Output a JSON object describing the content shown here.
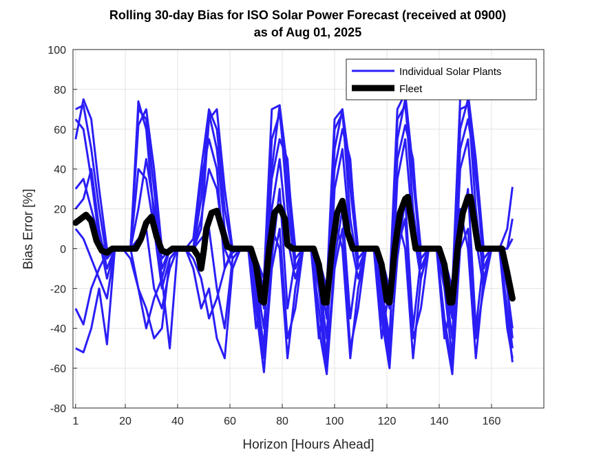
{
  "chart_data": {
    "type": "line",
    "title": [
      "Rolling 30-day Bias for ISO Solar Power Forecast (received at 0900)",
      "as of Aug 01, 2025"
    ],
    "xlabel": "Horizon [Hours Ahead]",
    "ylabel": "Bias Error [%]",
    "xlim": [
      0,
      180
    ],
    "ylim": [
      -80,
      100
    ],
    "xticks": [
      1,
      20,
      40,
      60,
      80,
      100,
      120,
      140,
      160
    ],
    "yticks": [
      -80,
      -60,
      -40,
      -20,
      0,
      20,
      40,
      60,
      80,
      100
    ],
    "grid": true,
    "legend": {
      "placement": "top-right",
      "entries": [
        "Individual Solar Plants",
        "Fleet"
      ]
    },
    "colors": {
      "plants": "#2a1ef5",
      "fleet": "#000000"
    },
    "plant_x": [
      1,
      4,
      7,
      10,
      13,
      16,
      19,
      22,
      25,
      28,
      31,
      34,
      37,
      40,
      43,
      46,
      49,
      52,
      55,
      58,
      61,
      64,
      67,
      70,
      73,
      76,
      79,
      82,
      85,
      88,
      91,
      94,
      97,
      100,
      103,
      106,
      109,
      112,
      115,
      118,
      121,
      124,
      127,
      130,
      133,
      136,
      139,
      142,
      145,
      148,
      151,
      154,
      157,
      160,
      163,
      166,
      168
    ],
    "plant_series": [
      [
        70,
        72,
        50,
        20,
        -5,
        0,
        0,
        0,
        70,
        65,
        30,
        -10,
        0,
        0,
        0,
        0,
        25,
        68,
        50,
        10,
        -5,
        0,
        0,
        -20,
        -50,
        40,
        72,
        20,
        -10,
        0,
        0,
        -20,
        -55,
        50,
        70,
        15,
        -10,
        0,
        0,
        -25,
        -50,
        55,
        75,
        20,
        -10,
        0,
        0,
        -20,
        -55,
        60,
        75,
        20,
        -15,
        0,
        0,
        -30,
        -50
      ],
      [
        30,
        35,
        20,
        5,
        -15,
        0,
        0,
        0,
        40,
        35,
        10,
        -20,
        -5,
        0,
        0,
        0,
        15,
        40,
        30,
        0,
        -10,
        0,
        0,
        -15,
        -40,
        20,
        45,
        5,
        -15,
        0,
        0,
        -15,
        -45,
        30,
        50,
        5,
        -15,
        0,
        0,
        -20,
        -45,
        35,
        55,
        10,
        -15,
        0,
        0,
        -15,
        -45,
        40,
        55,
        5,
        -20,
        0,
        0,
        -20,
        -40
      ],
      [
        -50,
        -52,
        -40,
        -20,
        -48,
        0,
        0,
        -5,
        -20,
        -30,
        -45,
        -40,
        -5,
        0,
        0,
        -10,
        -30,
        -20,
        -45,
        -55,
        -10,
        0,
        0,
        -30,
        -62,
        -10,
        10,
        -45,
        -30,
        0,
        0,
        -40,
        -63,
        -10,
        10,
        -50,
        -30,
        0,
        0,
        -35,
        -60,
        0,
        15,
        -45,
        -30,
        0,
        0,
        -40,
        -63,
        0,
        10,
        -45,
        -20,
        0,
        0,
        -35,
        -57
      ],
      [
        -30,
        -38,
        -20,
        -10,
        -2,
        0,
        0,
        0,
        -20,
        -40,
        -25,
        -15,
        -50,
        0,
        0,
        -5,
        -15,
        -35,
        -25,
        -10,
        -2,
        0,
        0,
        -25,
        -55,
        -5,
        30,
        -30,
        -5,
        0,
        0,
        -30,
        -60,
        -5,
        20,
        -35,
        -5,
        0,
        0,
        -30,
        -55,
        -5,
        25,
        -40,
        -5,
        0,
        0,
        -35,
        -60,
        5,
        30,
        -40,
        -5,
        0,
        0,
        -20,
        -45
      ],
      [
        65,
        60,
        35,
        5,
        -2,
        0,
        0,
        0,
        62,
        70,
        40,
        0,
        -2,
        0,
        0,
        5,
        40,
        70,
        60,
        20,
        -2,
        0,
        0,
        -10,
        -30,
        55,
        68,
        30,
        -5,
        0,
        0,
        -10,
        -35,
        60,
        68,
        30,
        -5,
        0,
        0,
        -15,
        -30,
        65,
        72,
        35,
        -5,
        0,
        0,
        -15,
        -35,
        70,
        72,
        35,
        -5,
        0,
        0,
        10,
        31
      ],
      [
        20,
        25,
        40,
        10,
        -10,
        0,
        0,
        0,
        20,
        45,
        20,
        -15,
        0,
        0,
        0,
        0,
        35,
        55,
        40,
        -10,
        0,
        0,
        0,
        -5,
        -20,
        35,
        55,
        45,
        -10,
        0,
        0,
        -5,
        -25,
        40,
        60,
        45,
        -10,
        0,
        0,
        -10,
        -25,
        45,
        62,
        45,
        -10,
        0,
        0,
        -10,
        -30,
        50,
        65,
        40,
        -10,
        0,
        0,
        0,
        15
      ],
      [
        10,
        5,
        -5,
        -15,
        -25,
        0,
        0,
        0,
        5,
        10,
        -20,
        -30,
        -10,
        0,
        0,
        0,
        5,
        10,
        -20,
        -40,
        -5,
        0,
        0,
        -40,
        -20,
        10,
        0,
        -55,
        -20,
        0,
        0,
        -45,
        -20,
        15,
        0,
        -55,
        -20,
        0,
        0,
        -45,
        -20,
        15,
        0,
        -55,
        -15,
        0,
        0,
        -45,
        -25,
        20,
        0,
        -55,
        -15,
        0,
        0,
        -40,
        -55
      ],
      [
        55,
        75,
        65,
        30,
        0,
        0,
        0,
        0,
        74,
        60,
        15,
        -5,
        0,
        0,
        0,
        0,
        10,
        65,
        70,
        30,
        0,
        0,
        0,
        -5,
        -15,
        70,
        72,
        40,
        0,
        0,
        0,
        -5,
        -20,
        65,
        70,
        40,
        0,
        0,
        0,
        -5,
        -20,
        70,
        78,
        40,
        0,
        0,
        0,
        -5,
        -20,
        75,
        78,
        45,
        0,
        0,
        0,
        0,
        5
      ]
    ],
    "fleet": [
      [
        1,
        13
      ],
      [
        3,
        15
      ],
      [
        5,
        17
      ],
      [
        7,
        14
      ],
      [
        9,
        4
      ],
      [
        11,
        -1
      ],
      [
        13,
        -2
      ],
      [
        15,
        0
      ],
      [
        24,
        0
      ],
      [
        26,
        5
      ],
      [
        28,
        13
      ],
      [
        30,
        16
      ],
      [
        32,
        6
      ],
      [
        34,
        -1
      ],
      [
        36,
        -2
      ],
      [
        38,
        0
      ],
      [
        46,
        0
      ],
      [
        48,
        -4
      ],
      [
        49,
        -10
      ],
      [
        50,
        -1
      ],
      [
        51,
        10
      ],
      [
        53,
        18
      ],
      [
        55,
        19
      ],
      [
        57,
        10
      ],
      [
        59,
        1
      ],
      [
        61,
        0
      ],
      [
        68,
        0
      ],
      [
        70,
        -8
      ],
      [
        72,
        -26
      ],
      [
        73,
        -27
      ],
      [
        75,
        0
      ],
      [
        77,
        18
      ],
      [
        79,
        21
      ],
      [
        81,
        15
      ],
      [
        82,
        2
      ],
      [
        84,
        0
      ],
      [
        92,
        0
      ],
      [
        94,
        -8
      ],
      [
        96,
        -27
      ],
      [
        97,
        -27
      ],
      [
        99,
        0
      ],
      [
        101,
        18
      ],
      [
        103,
        24
      ],
      [
        105,
        8
      ],
      [
        107,
        0
      ],
      [
        116,
        0
      ],
      [
        118,
        -8
      ],
      [
        120,
        -26
      ],
      [
        121,
        -27
      ],
      [
        123,
        0
      ],
      [
        125,
        18
      ],
      [
        127,
        25
      ],
      [
        128,
        26
      ],
      [
        130,
        8
      ],
      [
        131,
        0
      ],
      [
        140,
        0
      ],
      [
        142,
        -8
      ],
      [
        144,
        -27
      ],
      [
        145,
        -27
      ],
      [
        147,
        0
      ],
      [
        149,
        18
      ],
      [
        151,
        26
      ],
      [
        152,
        26
      ],
      [
        154,
        8
      ],
      [
        155,
        0
      ],
      [
        164,
        0
      ],
      [
        166,
        -12
      ],
      [
        168,
        -25
      ]
    ]
  }
}
